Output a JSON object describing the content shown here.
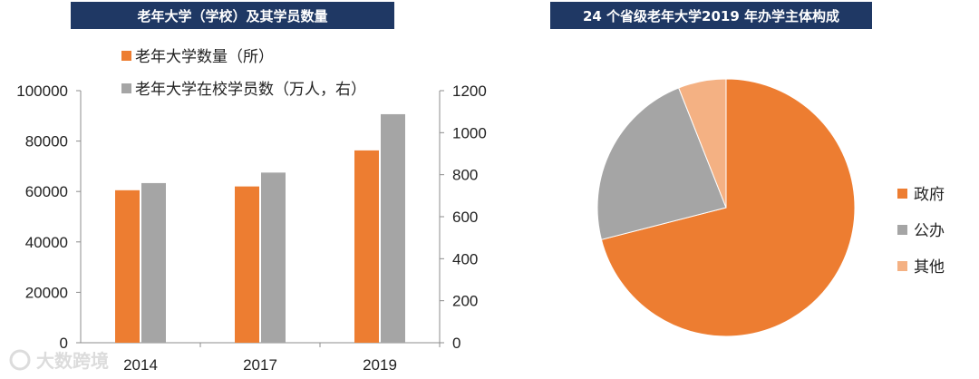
{
  "left_title": "老年大学（学校）及其学员数量",
  "right_title": "24 个省级老年大学2019 年办学主体构成",
  "watermark": "大数跨境",
  "colors": {
    "orange": "#ed7d31",
    "gray": "#a5a5a5",
    "light_orange": "#f4b183",
    "navy": "#1f3864"
  },
  "chart_data": [
    {
      "type": "bar",
      "title": "老年大学（学校）及其学员数量",
      "categories": [
        "2014",
        "2017",
        "2019"
      ],
      "series": [
        {
          "name": "老年大学数量（所）",
          "axis": "left",
          "color": "#ed7d31",
          "values": [
            60500,
            62000,
            76300
          ]
        },
        {
          "name": "老年大学在校学员数（万人，右）",
          "axis": "right",
          "color": "#a5a5a5",
          "values": [
            760,
            810,
            1088
          ]
        }
      ],
      "ylim_left": [
        0,
        100000
      ],
      "yticks_left": [
        "0",
        "20000",
        "40000",
        "60000",
        "80000",
        "100000"
      ],
      "ylim_right": [
        0,
        1200
      ],
      "yticks_right": [
        "0",
        "200",
        "400",
        "600",
        "800",
        "1000",
        "1200"
      ],
      "legend": "top",
      "grid": false
    },
    {
      "type": "pie",
      "title": "24 个省级老年大学2019 年办学主体构成",
      "labels": [
        "政府",
        "公办",
        "其他"
      ],
      "values": [
        71,
        23,
        6
      ],
      "colors": [
        "#ed7d31",
        "#a5a5a5",
        "#f4b183"
      ],
      "legend": "right"
    }
  ]
}
